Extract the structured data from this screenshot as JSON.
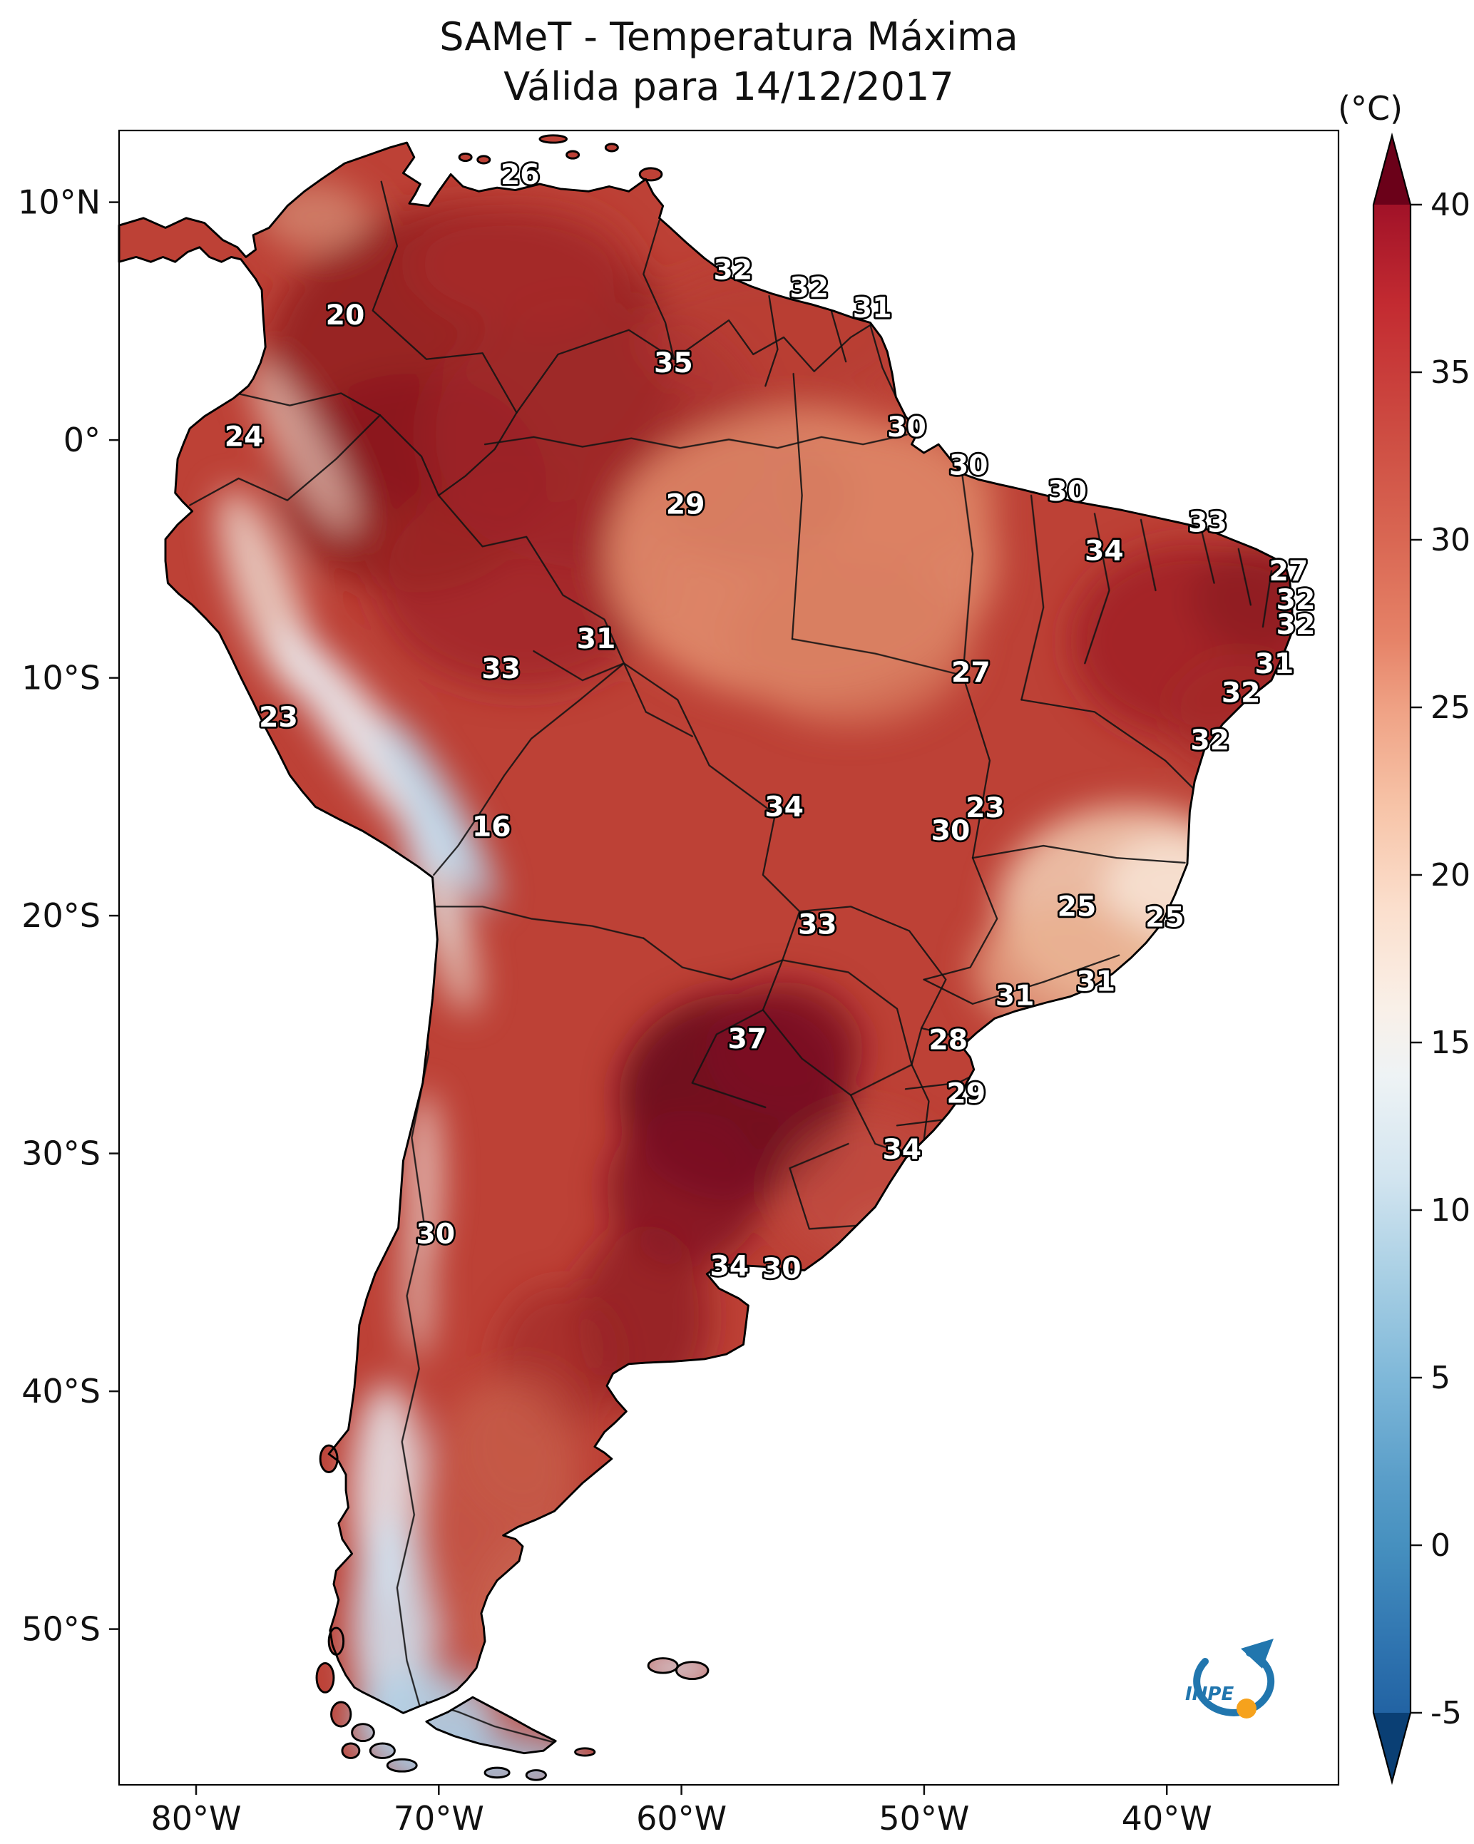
{
  "title": {
    "line1": "SAMeT - Temperatura Máxima",
    "line2": "Válida para 14/12/2017"
  },
  "colorbar": {
    "unit_label": "(°C)",
    "min": -5,
    "max": 40,
    "ticks": [
      {
        "label": "40",
        "value": 40
      },
      {
        "label": "35",
        "value": 35
      },
      {
        "label": "30",
        "value": 30
      },
      {
        "label": "25",
        "value": 25
      },
      {
        "label": "20",
        "value": 20
      },
      {
        "label": "15",
        "value": 15
      },
      {
        "label": "10",
        "value": 10
      },
      {
        "label": "5",
        "value": 5
      },
      {
        "label": "0",
        "value": 0
      },
      {
        "label": "-5",
        "value": -5
      }
    ],
    "gradient": [
      {
        "v": 40,
        "c": "#a11228"
      },
      {
        "v": 37,
        "c": "#c32b31"
      },
      {
        "v": 33,
        "c": "#ce4e43"
      },
      {
        "v": 30,
        "c": "#d96753"
      },
      {
        "v": 27,
        "c": "#e68368"
      },
      {
        "v": 25,
        "c": "#efa184"
      },
      {
        "v": 22,
        "c": "#f7c4a8"
      },
      {
        "v": 19,
        "c": "#fbdfcd"
      },
      {
        "v": 16,
        "c": "#f9f0e8"
      },
      {
        "v": 14,
        "c": "#eef3f5"
      },
      {
        "v": 11,
        "c": "#d3e5f0"
      },
      {
        "v": 8,
        "c": "#a8cfe4"
      },
      {
        "v": 5,
        "c": "#7fb8d9"
      },
      {
        "v": 2,
        "c": "#5a9ec9"
      },
      {
        "v": 0,
        "c": "#4690bf"
      },
      {
        "v": -3,
        "c": "#2f74b0"
      },
      {
        "v": -5,
        "c": "#2263a3"
      }
    ],
    "extend_top_color": "#6b0119",
    "extend_bottom_color": "#0a3f74"
  },
  "axes": {
    "lat_ticks": [
      {
        "label": "10°N",
        "value": 10
      },
      {
        "label": "0°",
        "value": 0
      },
      {
        "label": "10°S",
        "value": -10
      },
      {
        "label": "20°S",
        "value": -20
      },
      {
        "label": "30°S",
        "value": -30
      },
      {
        "label": "40°S",
        "value": -40
      },
      {
        "label": "50°S",
        "value": -50
      }
    ],
    "lon_ticks": [
      {
        "label": "80°W",
        "value": -80
      },
      {
        "label": "70°W",
        "value": -70
      },
      {
        "label": "60°W",
        "value": -60
      },
      {
        "label": "50°W",
        "value": -50
      },
      {
        "label": "40°W",
        "value": -40
      }
    ]
  },
  "map": {
    "region": "South America",
    "base_land_color": "#bd4136",
    "ocean_color": "#ffffff"
  },
  "logo": {
    "text": "INPE"
  },
  "chart_data": {
    "type": "heatmap",
    "title": "SAMeT - Temperatura Máxima",
    "subtitle": "Válida para 14/12/2017",
    "unit": "°C",
    "colorbar_range": [
      -5,
      40
    ],
    "colorbar_tick_values": [
      40,
      35,
      30,
      25,
      20,
      15,
      10,
      5,
      0,
      -5
    ],
    "lat_tick_labels": [
      "10°N",
      "0°",
      "10°S",
      "20°S",
      "30°S",
      "40°S",
      "50°S"
    ],
    "lon_tick_labels": [
      "80°W",
      "70°W",
      "60°W",
      "50°W",
      "40°W"
    ],
    "point_labels": [
      {
        "v": "26",
        "x": 328.8,
        "y": 44.0
      },
      {
        "v": "20",
        "x": 185.4,
        "y": 159.5
      },
      {
        "v": "24",
        "x": 102.4,
        "y": 259.3
      },
      {
        "v": "32",
        "x": 503.4,
        "y": 122.3
      },
      {
        "v": "32",
        "x": 565.9,
        "y": 137.0
      },
      {
        "v": "31",
        "x": 617.6,
        "y": 153.6
      },
      {
        "v": "35",
        "x": 454.6,
        "y": 198.6
      },
      {
        "v": "30",
        "x": 645.9,
        "y": 251.5
      },
      {
        "v": "30",
        "x": 696.6,
        "y": 282.8
      },
      {
        "v": "30",
        "x": 777.6,
        "y": 304.3
      },
      {
        "v": "29",
        "x": 464.4,
        "y": 315.1
      },
      {
        "v": "34",
        "x": 807.8,
        "y": 353.2
      },
      {
        "v": "33",
        "x": 892.7,
        "y": 329.7
      },
      {
        "v": "27",
        "x": 959.0,
        "y": 369.9
      },
      {
        "v": "32",
        "x": 964.9,
        "y": 393.3
      },
      {
        "v": "32",
        "x": 964.9,
        "y": 413.9
      },
      {
        "v": "31",
        "x": 391.2,
        "y": 425.6
      },
      {
        "v": "33",
        "x": 313.2,
        "y": 450.1
      },
      {
        "v": "31",
        "x": 947.3,
        "y": 446.2
      },
      {
        "v": "27",
        "x": 698.5,
        "y": 453.0
      },
      {
        "v": "32",
        "x": 920.0,
        "y": 469.7
      },
      {
        "v": "23",
        "x": 130.7,
        "y": 490.2
      },
      {
        "v": "32",
        "x": 894.6,
        "y": 508.8
      },
      {
        "v": "34",
        "x": 545.4,
        "y": 563.6
      },
      {
        "v": "23",
        "x": 710.2,
        "y": 564.6
      },
      {
        "v": "30",
        "x": 681.9,
        "y": 583.2
      },
      {
        "v": "16",
        "x": 305.4,
        "y": 580.2
      },
      {
        "v": "25",
        "x": 785.4,
        "y": 645.8
      },
      {
        "v": "25",
        "x": 857.6,
        "y": 654.6
      },
      {
        "v": "33",
        "x": 572.7,
        "y": 660.4
      },
      {
        "v": "31",
        "x": 801.0,
        "y": 707.4
      },
      {
        "v": "31",
        "x": 734.6,
        "y": 719.1
      },
      {
        "v": "37",
        "x": 515.1,
        "y": 754.4
      },
      {
        "v": "28",
        "x": 680.0,
        "y": 755.3
      },
      {
        "v": "29",
        "x": 694.6,
        "y": 799.4
      },
      {
        "v": "34",
        "x": 642.0,
        "y": 845.3
      },
      {
        "v": "30",
        "x": 259.5,
        "y": 914.8
      },
      {
        "v": "34",
        "x": 500.5,
        "y": 941.2
      },
      {
        "v": "30",
        "x": 543.4,
        "y": 943.2
      }
    ]
  }
}
